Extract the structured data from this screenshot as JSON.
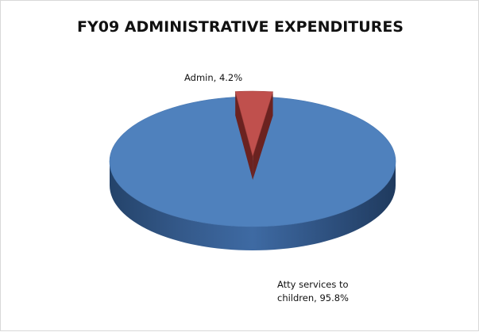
{
  "chart_data": {
    "type": "pie",
    "title": "FY09 ADMINISTRATIVE EXPENDITURES",
    "categories": [
      "Admin",
      "Atty services to children"
    ],
    "values": [
      4.2,
      95.8
    ],
    "unit": "%",
    "labels": [
      {
        "lines": [
          "Admin, 4.2%"
        ]
      },
      {
        "lines": [
          "Atty services to",
          "children, 95.8%"
        ]
      }
    ],
    "colors": [
      "#c0504d",
      "#4f81bd"
    ],
    "style": "3d-exploded"
  }
}
